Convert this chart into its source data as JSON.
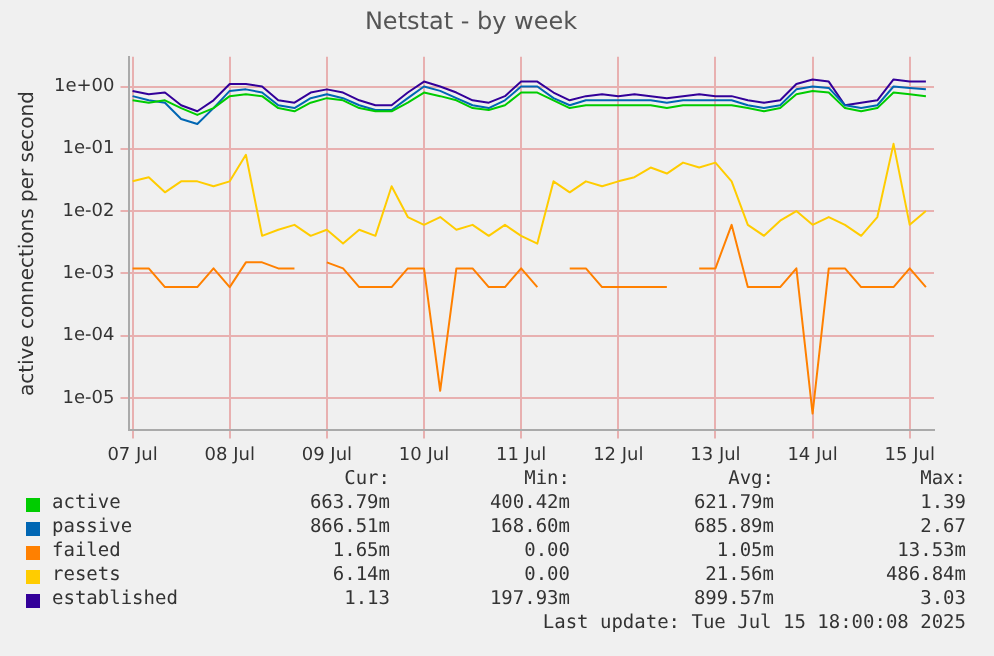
{
  "chart_data": {
    "type": "line",
    "title": "Netstat - by week",
    "ylabel": "active connections per second",
    "x": [
      "2025-07-07T12:00",
      "2025-07-07T16:00",
      "2025-07-07T20:00",
      "2025-07-08T00:00",
      "2025-07-08T04:00",
      "2025-07-08T08:00",
      "2025-07-08T12:00",
      "2025-07-08T16:00",
      "2025-07-08T20:00",
      "2025-07-09T00:00",
      "2025-07-09T04:00",
      "2025-07-09T08:00",
      "2025-07-09T12:00",
      "2025-07-09T16:00",
      "2025-07-09T20:00",
      "2025-07-10T00:00",
      "2025-07-10T04:00",
      "2025-07-10T08:00",
      "2025-07-10T12:00",
      "2025-07-10T16:00",
      "2025-07-10T20:00",
      "2025-07-11T00:00",
      "2025-07-11T04:00",
      "2025-07-11T08:00",
      "2025-07-11T12:00",
      "2025-07-11T16:00",
      "2025-07-11T20:00",
      "2025-07-12T00:00",
      "2025-07-12T04:00",
      "2025-07-12T08:00",
      "2025-07-12T12:00",
      "2025-07-12T16:00",
      "2025-07-12T20:00",
      "2025-07-13T00:00",
      "2025-07-13T04:00",
      "2025-07-13T08:00",
      "2025-07-13T12:00",
      "2025-07-13T16:00",
      "2025-07-13T20:00",
      "2025-07-14T00:00",
      "2025-07-14T04:00",
      "2025-07-14T08:00",
      "2025-07-14T12:00",
      "2025-07-14T16:00",
      "2025-07-14T20:00",
      "2025-07-15T00:00",
      "2025-07-15T04:00",
      "2025-07-15T08:00",
      "2025-07-15T12:00",
      "2025-07-15T16:00"
    ],
    "series": [
      {
        "name": "active",
        "color": "#00cc00",
        "values": [
          0.6,
          0.55,
          0.6,
          0.45,
          0.35,
          0.45,
          0.7,
          0.75,
          0.7,
          0.45,
          0.4,
          0.55,
          0.65,
          0.6,
          0.45,
          0.4,
          0.4,
          0.55,
          0.8,
          0.7,
          0.6,
          0.45,
          0.42,
          0.5,
          0.8,
          0.8,
          0.6,
          0.45,
          0.5,
          0.5,
          0.5,
          0.5,
          0.5,
          0.45,
          0.5,
          0.5,
          0.5,
          0.5,
          0.45,
          0.4,
          0.45,
          0.75,
          0.85,
          0.8,
          0.45,
          0.4,
          0.45,
          0.8,
          0.75,
          0.7
        ]
      },
      {
        "name": "passive",
        "color": "#0066b3",
        "values": [
          0.7,
          0.6,
          0.55,
          0.3,
          0.25,
          0.45,
          0.85,
          0.9,
          0.8,
          0.5,
          0.45,
          0.65,
          0.75,
          0.65,
          0.5,
          0.42,
          0.42,
          0.65,
          1.0,
          0.85,
          0.65,
          0.5,
          0.45,
          0.6,
          1.0,
          1.0,
          0.65,
          0.5,
          0.6,
          0.6,
          0.6,
          0.6,
          0.6,
          0.55,
          0.6,
          0.6,
          0.6,
          0.6,
          0.5,
          0.45,
          0.5,
          0.9,
          1.0,
          0.95,
          0.5,
          0.45,
          0.5,
          1.0,
          0.95,
          0.9
        ]
      },
      {
        "name": "failed",
        "color": "#ff8000",
        "values": [
          0.0012,
          0.0012,
          0.0006,
          0.0006,
          0.0006,
          0.0012,
          0.0006,
          0.0015,
          0.0015,
          0.0012,
          0.0012,
          null,
          0.0015,
          0.0012,
          0.0006,
          0.0006,
          0.0006,
          0.0012,
          0.0012,
          1.3e-05,
          0.0012,
          0.0012,
          0.0006,
          0.0006,
          0.0012,
          0.0006,
          null,
          0.0012,
          0.0012,
          0.0006,
          0.0006,
          0.0006,
          0.0006,
          0.0006,
          null,
          0.0012,
          0.0012,
          0.006,
          0.0006,
          0.0006,
          0.0006,
          0.0012,
          5.6e-06,
          0.0012,
          0.0012,
          0.0006,
          0.0006,
          0.0006,
          0.0012,
          0.0006
        ]
      },
      {
        "name": "resets",
        "color": "#ffcc00",
        "values": [
          0.03,
          0.035,
          0.02,
          0.03,
          0.03,
          0.025,
          0.03,
          0.08,
          0.004,
          0.005,
          0.006,
          0.004,
          0.005,
          0.003,
          0.005,
          0.004,
          0.025,
          0.008,
          0.006,
          0.008,
          0.005,
          0.006,
          0.004,
          0.006,
          0.004,
          0.003,
          0.03,
          0.02,
          0.03,
          0.025,
          0.03,
          0.035,
          0.05,
          0.04,
          0.06,
          0.05,
          0.06,
          0.03,
          0.006,
          0.004,
          0.007,
          0.01,
          0.006,
          0.008,
          0.006,
          0.004,
          0.008,
          0.12,
          0.006,
          0.01
        ]
      },
      {
        "name": "established",
        "color": "#330099",
        "values": [
          0.85,
          0.75,
          0.8,
          0.5,
          0.4,
          0.6,
          1.1,
          1.1,
          1.0,
          0.6,
          0.55,
          0.8,
          0.9,
          0.8,
          0.6,
          0.5,
          0.5,
          0.8,
          1.2,
          1.0,
          0.8,
          0.6,
          0.55,
          0.7,
          1.2,
          1.2,
          0.8,
          0.6,
          0.7,
          0.75,
          0.7,
          0.75,
          0.7,
          0.65,
          0.7,
          0.75,
          0.7,
          0.7,
          0.6,
          0.55,
          0.6,
          1.1,
          1.3,
          1.2,
          0.5,
          0.55,
          0.6,
          1.3,
          1.2,
          1.2
        ]
      }
    ],
    "log": "y",
    "ylim": [
      3e-06,
      3
    ],
    "yticks": [
      {
        "value": 1e-05,
        "label": "1e-05"
      },
      {
        "value": 0.0001,
        "label": "1e-04"
      },
      {
        "value": 0.001,
        "label": "1e-03"
      },
      {
        "value": 0.01,
        "label": "1e-02"
      },
      {
        "value": 0.1,
        "label": "1e-01"
      },
      {
        "value": 1,
        "label": "1e+00"
      }
    ],
    "xlim": [
      "2025-07-07T11:00",
      "2025-07-15T18:00"
    ],
    "xticks": [
      {
        "value": "2025-07-07T12:00",
        "label": "07 Jul"
      },
      {
        "value": "2025-07-08T12:00",
        "label": "08 Jul"
      },
      {
        "value": "2025-07-09T12:00",
        "label": "09 Jul"
      },
      {
        "value": "2025-07-10T12:00",
        "label": "10 Jul"
      },
      {
        "value": "2025-07-11T12:00",
        "label": "11 Jul"
      },
      {
        "value": "2025-07-12T12:00",
        "label": "12 Jul"
      },
      {
        "value": "2025-07-13T12:00",
        "label": "13 Jul"
      },
      {
        "value": "2025-07-14T12:00",
        "label": "14 Jul"
      },
      {
        "value": "2025-07-15T12:00",
        "label": "15 Jul"
      }
    ],
    "grid": true,
    "legend": "bottom",
    "line_style": "solid",
    "marker": "none",
    "annotations": [
      "Cur:",
      "Min:",
      "Avg:",
      "Max:",
      "663.79m",
      "400.42m",
      "621.79m",
      "1.39",
      "866.51m",
      "168.60m",
      "685.89m",
      "2.67",
      "1.65m",
      "0.00",
      "1.05m",
      "13.53m",
      "6.14m",
      "0.00",
      "21.56m",
      "486.84m",
      "1.13",
      "197.93m",
      "899.57m",
      "3.03",
      "Last update: Tue Jul 15 18:00:08 2025"
    ]
  }
}
